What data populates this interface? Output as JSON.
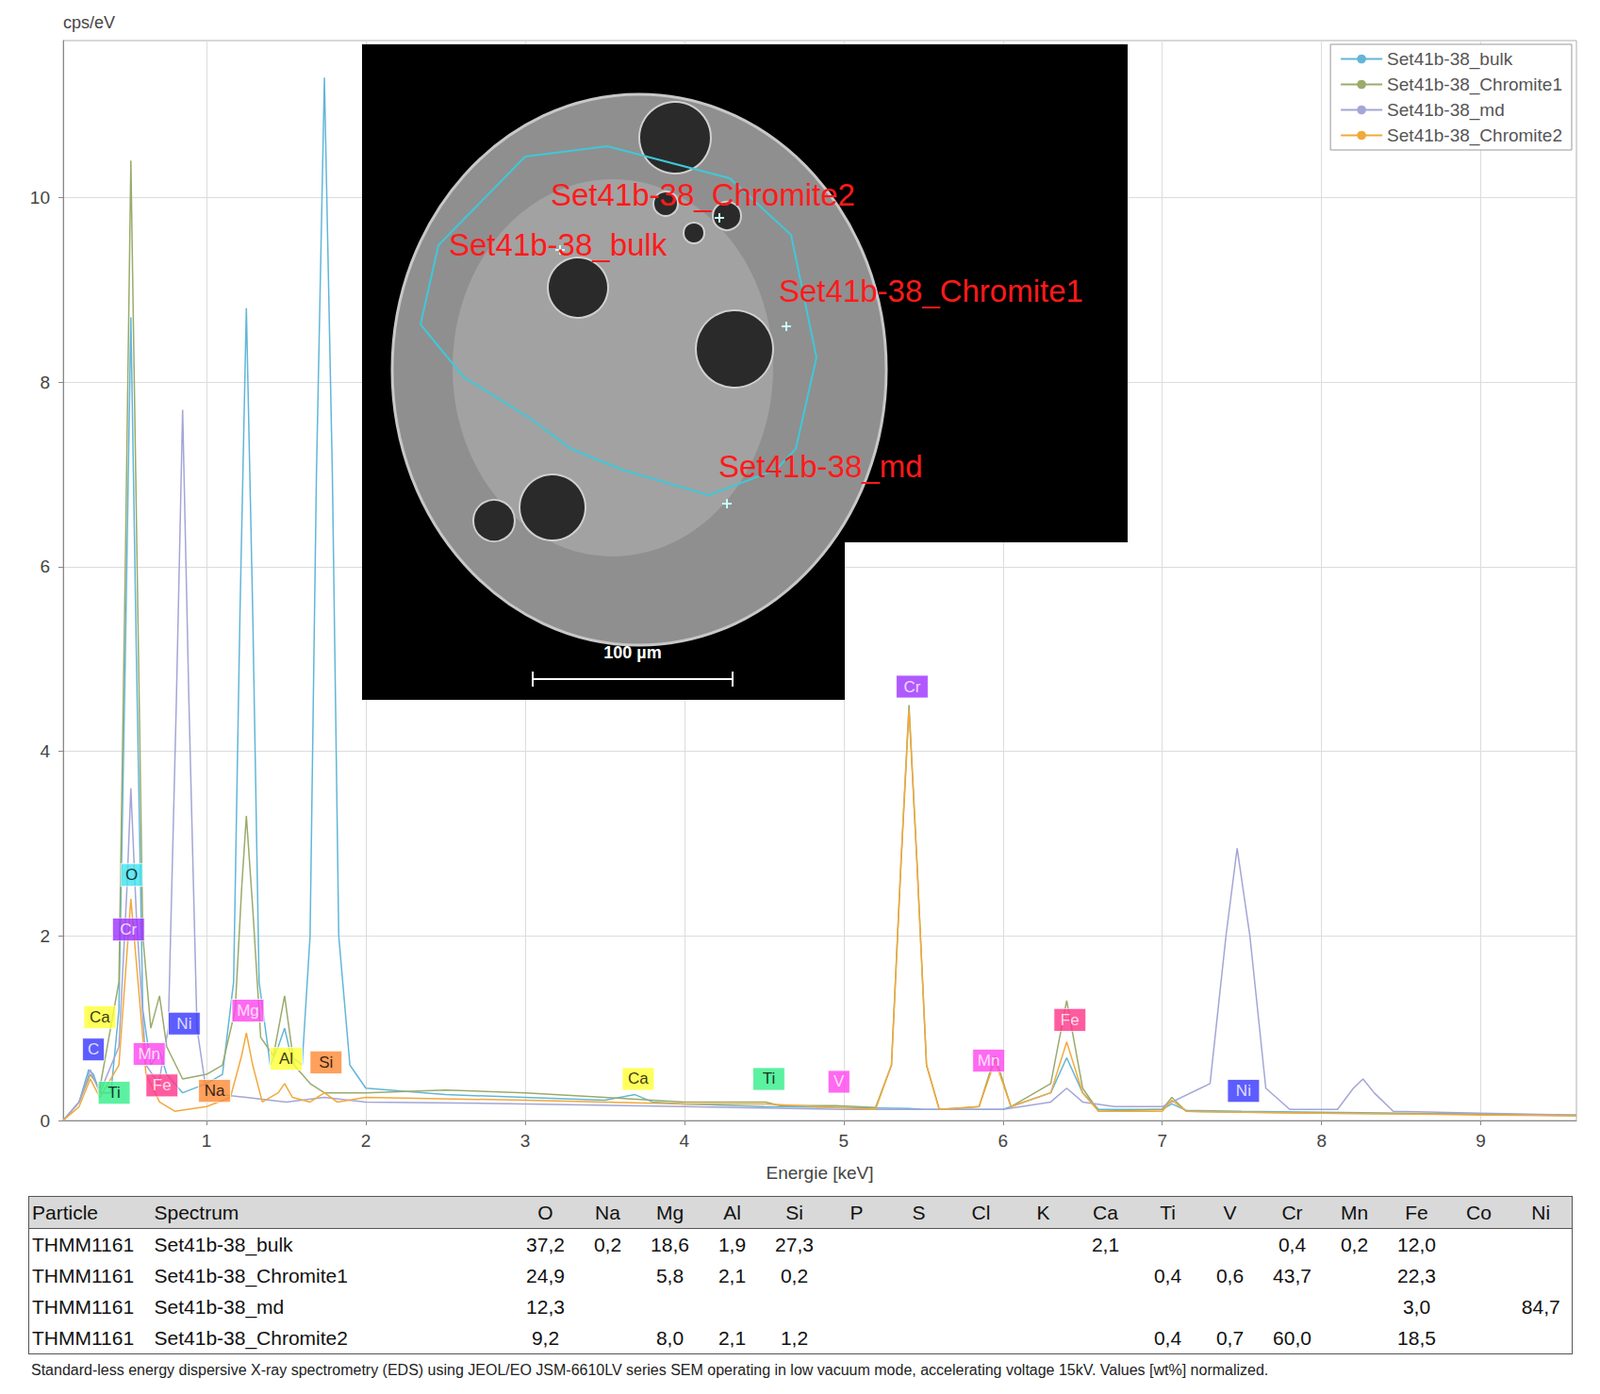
{
  "chart_data": {
    "type": "line",
    "y_label": "cps/eV",
    "x_label": "Energie [keV]",
    "xlim": [
      0.1,
      9.6
    ],
    "xticks": [
      1,
      2,
      3,
      4,
      5,
      6,
      7,
      8,
      9
    ],
    "ylim": [
      0,
      11.7
    ],
    "yticks": [
      0,
      2,
      4,
      6,
      8,
      10
    ],
    "grid": true,
    "legend": "upper right",
    "series": [
      {
        "name": "Set41b-38_bulk",
        "color": "#62b6d8",
        "x": [
          0.1,
          0.2,
          0.26,
          0.29,
          0.33,
          0.4,
          0.45,
          0.49,
          0.525,
          0.56,
          0.6,
          0.65,
          0.705,
          0.75,
          0.85,
          1.0,
          1.1,
          1.17,
          1.21,
          1.25,
          1.29,
          1.33,
          1.4,
          1.45,
          1.49,
          1.53,
          1.6,
          1.65,
          1.69,
          1.74,
          1.79,
          1.83,
          1.9,
          2.0,
          2.5,
          3.0,
          3.5,
          3.69,
          3.8,
          4.0,
          4.5,
          5.0,
          5.41,
          5.5,
          6.0,
          6.3,
          6.4,
          6.5,
          6.6,
          7.0,
          7.06,
          7.15,
          7.5,
          8.0,
          8.5,
          9.0,
          9.6
        ],
        "values": [
          0,
          0.2,
          0.55,
          0.5,
          0.3,
          0.3,
          1.2,
          5.0,
          8.7,
          5.0,
          1.2,
          0.6,
          0.75,
          0.5,
          0.3,
          0.4,
          0.5,
          1.5,
          5.5,
          8.8,
          5.5,
          1.5,
          0.6,
          0.8,
          1.0,
          0.7,
          0.6,
          2.0,
          7.0,
          11.3,
          7.0,
          2.0,
          0.6,
          0.35,
          0.28,
          0.25,
          0.22,
          0.28,
          0.2,
          0.18,
          0.15,
          0.14,
          0.13,
          0.12,
          0.12,
          0.3,
          0.68,
          0.3,
          0.12,
          0.12,
          0.18,
          0.11,
          0.1,
          0.09,
          0.08,
          0.07,
          0.06
        ]
      },
      {
        "name": "Set41b-38_Chromite1",
        "color": "#9aab6c",
        "x": [
          0.1,
          0.2,
          0.27,
          0.33,
          0.45,
          0.49,
          0.525,
          0.56,
          0.6,
          0.65,
          0.705,
          0.75,
          0.85,
          1.0,
          1.1,
          1.18,
          1.22,
          1.25,
          1.29,
          1.34,
          1.42,
          1.49,
          1.55,
          1.65,
          1.74,
          1.85,
          2.0,
          2.5,
          3.0,
          3.5,
          4.0,
          4.51,
          4.6,
          4.95,
          5.2,
          5.3,
          5.36,
          5.41,
          5.46,
          5.52,
          5.6,
          5.85,
          5.95,
          6.05,
          6.3,
          6.4,
          6.5,
          6.6,
          7.0,
          7.06,
          7.15,
          7.5,
          8.0,
          9.0,
          9.6
        ],
        "values": [
          0,
          0.2,
          0.5,
          0.35,
          1.5,
          6.0,
          10.4,
          6.5,
          2.0,
          1.0,
          1.35,
          0.8,
          0.45,
          0.5,
          0.6,
          1.2,
          2.5,
          3.3,
          2.3,
          0.9,
          0.7,
          1.35,
          0.6,
          0.4,
          0.3,
          0.3,
          0.3,
          0.33,
          0.3,
          0.25,
          0.2,
          0.2,
          0.16,
          0.16,
          0.14,
          0.6,
          2.8,
          4.5,
          2.8,
          0.6,
          0.12,
          0.15,
          0.7,
          0.15,
          0.4,
          1.3,
          0.35,
          0.1,
          0.12,
          0.25,
          0.1,
          0.09,
          0.08,
          0.07,
          0.05
        ]
      },
      {
        "name": "Set41b-38_md",
        "color": "#a3a6d6",
        "x": [
          0.1,
          0.2,
          0.27,
          0.33,
          0.45,
          0.5,
          0.525,
          0.56,
          0.62,
          0.7,
          0.76,
          0.81,
          0.85,
          0.89,
          0.94,
          1.0,
          1.25,
          1.5,
          1.74,
          2.0,
          3.0,
          4.0,
          5.0,
          6.0,
          6.3,
          6.4,
          6.5,
          6.7,
          7.0,
          7.3,
          7.4,
          7.47,
          7.55,
          7.65,
          7.8,
          8.1,
          8.2,
          8.26,
          8.33,
          8.45,
          9.0,
          9.6
        ],
        "values": [
          0,
          0.2,
          0.55,
          0.3,
          0.8,
          2.5,
          3.6,
          2.2,
          0.6,
          0.4,
          1.0,
          4.5,
          7.7,
          4.5,
          1.0,
          0.3,
          0.25,
          0.2,
          0.25,
          0.2,
          0.18,
          0.15,
          0.12,
          0.12,
          0.2,
          0.35,
          0.2,
          0.15,
          0.15,
          0.4,
          2.0,
          2.95,
          2.0,
          0.35,
          0.12,
          0.12,
          0.35,
          0.45,
          0.3,
          0.1,
          0.08,
          0.06
        ]
      },
      {
        "name": "Set41b-38_Chromite2",
        "color": "#f2a93b",
        "x": [
          0.1,
          0.2,
          0.27,
          0.33,
          0.45,
          0.5,
          0.525,
          0.56,
          0.62,
          0.705,
          0.8,
          1.0,
          1.15,
          1.22,
          1.25,
          1.29,
          1.35,
          1.45,
          1.49,
          1.54,
          1.65,
          1.74,
          1.82,
          2.0,
          3.0,
          4.0,
          4.51,
          4.95,
          5.2,
          5.3,
          5.36,
          5.41,
          5.46,
          5.52,
          5.6,
          5.85,
          5.95,
          6.05,
          6.3,
          6.4,
          6.5,
          6.6,
          7.0,
          7.06,
          7.15,
          8.0,
          9.0,
          9.6
        ],
        "values": [
          0,
          0.15,
          0.45,
          0.25,
          0.6,
          1.8,
          2.4,
          1.7,
          0.5,
          0.2,
          0.1,
          0.15,
          0.25,
          0.7,
          0.95,
          0.6,
          0.2,
          0.3,
          0.4,
          0.25,
          0.2,
          0.3,
          0.2,
          0.25,
          0.22,
          0.18,
          0.18,
          0.14,
          0.12,
          0.6,
          2.8,
          4.45,
          2.8,
          0.6,
          0.12,
          0.15,
          0.65,
          0.15,
          0.3,
          0.85,
          0.3,
          0.1,
          0.1,
          0.22,
          0.1,
          0.08,
          0.06,
          0.05
        ]
      }
    ],
    "annotations": [
      {
        "text": "O",
        "x": 0.53,
        "y": 2.66,
        "color": "#3fe3ee"
      },
      {
        "text": "Cr",
        "x": 0.51,
        "y": 2.07,
        "color": "#9b30ff"
      },
      {
        "text": "Ca",
        "x": 0.33,
        "y": 1.12,
        "color": "#ffff33"
      },
      {
        "text": "C",
        "x": 0.29,
        "y": 0.77,
        "color": "#3535ff"
      },
      {
        "text": "Ti",
        "x": 0.42,
        "y": 0.3,
        "color": "#33ee88"
      },
      {
        "text": "Mn",
        "x": 0.64,
        "y": 0.72,
        "color": "#ff44ee"
      },
      {
        "text": "Fe",
        "x": 0.72,
        "y": 0.38,
        "color": "#ff3388"
      },
      {
        "text": "Ni",
        "x": 0.86,
        "y": 1.05,
        "color": "#3535ff"
      },
      {
        "text": "Na",
        "x": 1.05,
        "y": 0.32,
        "color": "#ff8833"
      },
      {
        "text": "Mg",
        "x": 1.26,
        "y": 1.19,
        "color": "#ff44ee"
      },
      {
        "text": "Al",
        "x": 1.5,
        "y": 0.67,
        "color": "#ffff33"
      },
      {
        "text": "Si",
        "x": 1.75,
        "y": 0.63,
        "color": "#ff8833"
      },
      {
        "text": "Ca",
        "x": 3.71,
        "y": 0.45,
        "color": "#ffff33"
      },
      {
        "text": "Ti",
        "x": 4.53,
        "y": 0.45,
        "color": "#33ee88"
      },
      {
        "text": "V",
        "x": 4.97,
        "y": 0.42,
        "color": "#ff44ee"
      },
      {
        "text": "Cr",
        "x": 5.43,
        "y": 4.7,
        "color": "#9b30ff"
      },
      {
        "text": "Mn",
        "x": 5.91,
        "y": 0.65,
        "color": "#ff44ee"
      },
      {
        "text": "Fe",
        "x": 6.42,
        "y": 1.09,
        "color": "#ff3388"
      },
      {
        "text": "Ni",
        "x": 7.51,
        "y": 0.32,
        "color": "#3535ff"
      }
    ]
  },
  "inset": {
    "labels": [
      "Set41b-38_Chromite2",
      "Set41b-38_bulk",
      "Set41b-38_Chromite1",
      "Set41b-38_md"
    ],
    "scale_bar": "100 µm"
  },
  "table": {
    "header": [
      "Particle",
      "Spectrum",
      "O",
      "Na",
      "Mg",
      "Al",
      "Si",
      "P",
      "S",
      "Cl",
      "K",
      "Ca",
      "Ti",
      "V",
      "Cr",
      "Mn",
      "Fe",
      "Co",
      "Ni"
    ],
    "rows": [
      [
        "THMM1161",
        "Set41b-38_bulk",
        "37,2",
        "0,2",
        "18,6",
        "1,9",
        "27,3",
        null,
        null,
        null,
        null,
        "2,1",
        null,
        null,
        "0,4",
        "0,2",
        "12,0",
        null,
        null
      ],
      [
        "THMM1161",
        "Set41b-38_Chromite1",
        "24,9",
        null,
        "5,8",
        "2,1",
        "0,2",
        null,
        null,
        null,
        null,
        null,
        "0,4",
        "0,6",
        "43,7",
        null,
        "22,3",
        null,
        null
      ],
      [
        "THMM1161",
        "Set41b-38_md",
        "12,3",
        null,
        null,
        null,
        null,
        null,
        null,
        null,
        null,
        null,
        null,
        null,
        null,
        null,
        "3,0",
        null,
        "84,7"
      ],
      [
        "THMM1161",
        "Set41b-38_Chromite2",
        "9,2",
        null,
        "8,0",
        "2,1",
        "1,2",
        null,
        null,
        null,
        null,
        null,
        "0,4",
        "0,7",
        "60,0",
        null,
        "18,5",
        null,
        null
      ]
    ]
  },
  "footnote": "Standard-less energy dispersive X-ray spectrometry (EDS) using JEOL/EO JSM-6610LV series SEM operating in low vacuum mode, accelerating voltage 15kV. Values [wt%] normalized."
}
